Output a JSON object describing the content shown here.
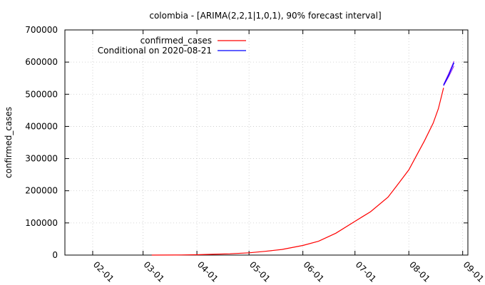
{
  "chart_data": {
    "type": "line",
    "title": "colombia -  [ARIMA(2,2,1|1,0,1), 90% forecast interval]",
    "xlabel": "",
    "ylabel": "confirmed_cases",
    "ylim": [
      0,
      700000
    ],
    "yticks": [
      "0",
      "100000",
      "200000",
      "300000",
      "400000",
      "500000",
      "600000",
      "700000"
    ],
    "xticks": [
      "02-01",
      "03-01",
      "04-01",
      "05-01",
      "06-01",
      "07-01",
      "08-01",
      "09-01"
    ],
    "grid": true,
    "legend_position": "top-left",
    "series": [
      {
        "name": "confirmed_cases",
        "color": "#ff0000",
        "x": [
          "2020-03-06",
          "2020-03-20",
          "2020-04-01",
          "2020-04-10",
          "2020-04-20",
          "2020-05-01",
          "2020-05-10",
          "2020-05-20",
          "2020-06-01",
          "2020-06-10",
          "2020-06-20",
          "2020-07-01",
          "2020-07-10",
          "2020-07-20",
          "2020-07-25",
          "2020-08-01",
          "2020-08-05",
          "2020-08-10",
          "2020-08-15",
          "2020-08-18",
          "2020-08-21"
        ],
        "values": [
          0,
          200,
          1100,
          2500,
          4000,
          7000,
          11500,
          17500,
          30000,
          43000,
          68000,
          105000,
          135000,
          180000,
          215000,
          265000,
          305000,
          355000,
          410000,
          455000,
          520000
        ]
      },
      {
        "name": "Conditional on 2020-08-21",
        "color": "#0000ff",
        "x": [
          "2020-08-21",
          "2020-08-24",
          "2020-08-27"
        ],
        "values": [
          528000,
          560000,
          598000
        ]
      }
    ],
    "interval": {
      "color": "#a020f0",
      "x": [
        "2020-08-21",
        "2020-08-24",
        "2020-08-27"
      ],
      "lower": [
        526000,
        555000,
        588000
      ],
      "upper": [
        530000,
        565000,
        603000
      ]
    }
  }
}
